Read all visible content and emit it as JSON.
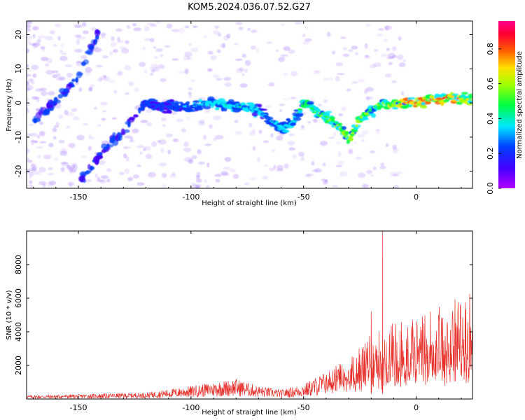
{
  "title": "KOM5.2024.036.07.52.G27",
  "colors": {
    "snr_line": "#e8302a",
    "blob_purple": "#6a00ff",
    "axis": "#000000"
  },
  "colorbar": {
    "label": "Normalized spectral amplitude",
    "ticks": [
      "0.0",
      "0.2",
      "0.4",
      "0.6",
      "0.8"
    ],
    "tick_values": [
      0.0,
      0.2,
      0.4,
      0.6,
      0.8
    ],
    "range": [
      0,
      0.96
    ],
    "colormap": "gist_rainbow (purple→blue→cyan→green→yellow→orange→red→magenta)"
  },
  "chart_data": [
    {
      "type": "heatmap",
      "name": "spectrogram",
      "xlabel": "Height of straight line (km)",
      "ylabel": "Frequency (Hz)",
      "xlim": [
        -173,
        25
      ],
      "ylim": [
        -25,
        24
      ],
      "xticks": [
        -150,
        -100,
        -50,
        0
      ],
      "xtick_labels": [
        "-150",
        "-100",
        "-50",
        "0"
      ],
      "yticks": [
        -20,
        -10,
        0,
        10,
        20
      ],
      "ytick_labels": [
        "-20",
        "-10",
        "0",
        "10",
        "20"
      ],
      "ridge": {
        "x": [
          -120,
          -110,
          -100,
          -90,
          -80,
          -70,
          -65,
          -60,
          -55,
          -50,
          -45,
          -40,
          -35,
          -30,
          -25,
          -20,
          -15,
          -10,
          -5,
          0,
          5,
          10,
          15,
          20,
          25
        ],
        "y": [
          0,
          -1,
          -1,
          0,
          -1,
          -2,
          -5,
          -7,
          -6,
          0,
          -2,
          -4,
          -6,
          -11,
          -5,
          -2,
          0,
          -1,
          0,
          0,
          1,
          1,
          2,
          1,
          1
        ],
        "amplitude": [
          0.15,
          0.2,
          0.25,
          0.3,
          0.35,
          0.3,
          0.25,
          0.3,
          0.3,
          0.4,
          0.45,
          0.5,
          0.5,
          0.55,
          0.5,
          0.45,
          0.5,
          0.6,
          0.65,
          0.8,
          0.7,
          0.75,
          0.75,
          0.7,
          0.6
        ]
      },
      "diagonal_streaks": [
        {
          "x": [
            -170,
            -160,
            -150,
            -140
          ],
          "y": [
            -5,
            0,
            8,
            22
          ]
        },
        {
          "x": [
            -150,
            -140,
            -130,
            -120
          ],
          "y": [
            -24,
            -15,
            -8,
            0
          ]
        }
      ]
    },
    {
      "type": "line",
      "name": "snr",
      "xlabel": "Height of straight line (km)",
      "ylabel": "SNR (10 * v/v)",
      "xlim": [
        -173,
        25
      ],
      "ylim": [
        0,
        10000
      ],
      "xticks": [
        -150,
        -100,
        -50,
        0
      ],
      "xtick_labels": [
        "-150",
        "-100",
        "-50",
        "0"
      ],
      "yticks": [
        2000,
        4000,
        6000,
        8000
      ],
      "ytick_labels": [
        "2000",
        "4000",
        "6000",
        "8000"
      ],
      "envelope": {
        "x": [
          -173,
          -150,
          -120,
          -100,
          -90,
          -80,
          -70,
          -60,
          -50,
          -40,
          -30,
          -25,
          -20,
          -15,
          -10,
          -5,
          0,
          10,
          20,
          25
        ],
        "y": [
          200,
          250,
          350,
          700,
          900,
          1100,
          700,
          500,
          800,
          1500,
          2200,
          2800,
          3500,
          3800,
          4200,
          4300,
          4500,
          5000,
          5600,
          5900
        ]
      },
      "spikes": [
        {
          "x": -15,
          "y": 10000
        },
        {
          "x": -20,
          "y": 5200
        }
      ]
    }
  ]
}
